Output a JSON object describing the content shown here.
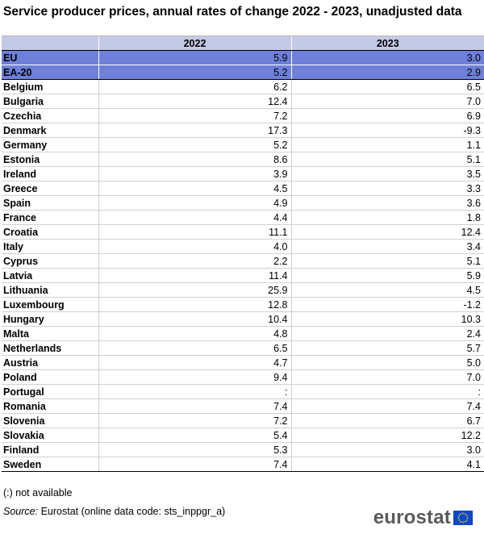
{
  "title": "Service producer prices, annual rates of change 2022 - 2023, unadjusted data",
  "table": {
    "headers": [
      "",
      "2022",
      "2023"
    ],
    "aggregates": [
      {
        "name": "EU",
        "v2022": "5.9",
        "v2023": "3.0"
      },
      {
        "name": "EA-20",
        "v2022": "5.2",
        "v2023": "2.9"
      }
    ],
    "rows": [
      {
        "name": "Belgium",
        "v2022": "6.2",
        "v2023": "6.5"
      },
      {
        "name": "Bulgaria",
        "v2022": "12.4",
        "v2023": "7.0"
      },
      {
        "name": "Czechia",
        "v2022": "7.2",
        "v2023": "6.9"
      },
      {
        "name": "Denmark",
        "v2022": "17.3",
        "v2023": "-9.3"
      },
      {
        "name": "Germany",
        "v2022": "5.2",
        "v2023": "1.1"
      },
      {
        "name": "Estonia",
        "v2022": "8.6",
        "v2023": "5.1"
      },
      {
        "name": "Ireland",
        "v2022": "3.9",
        "v2023": "3.5"
      },
      {
        "name": "Greece",
        "v2022": "4.5",
        "v2023": "3.3"
      },
      {
        "name": "Spain",
        "v2022": "4.9",
        "v2023": "3.6"
      },
      {
        "name": "France",
        "v2022": "4.4",
        "v2023": "1.8"
      },
      {
        "name": "Croatia",
        "v2022": "11.1",
        "v2023": "12.4"
      },
      {
        "name": "Italy",
        "v2022": "4.0",
        "v2023": "3.4"
      },
      {
        "name": "Cyprus",
        "v2022": "2.2",
        "v2023": "5.1"
      },
      {
        "name": "Latvia",
        "v2022": "11.4",
        "v2023": "5.9"
      },
      {
        "name": "Lithuania",
        "v2022": "25.9",
        "v2023": "4.5"
      },
      {
        "name": "Luxembourg",
        "v2022": "12.8",
        "v2023": "-1.2"
      },
      {
        "name": "Hungary",
        "v2022": "10.4",
        "v2023": "10.3"
      },
      {
        "name": "Malta",
        "v2022": "4.8",
        "v2023": "2.4"
      },
      {
        "name": "Netherlands",
        "v2022": "6.5",
        "v2023": "5.7"
      },
      {
        "name": "Austria",
        "v2022": "4.7",
        "v2023": "5.0"
      },
      {
        "name": "Poland",
        "v2022": "9.4",
        "v2023": "7.0"
      },
      {
        "name": "Portugal",
        "v2022": ":",
        "v2023": ":"
      },
      {
        "name": "Romania",
        "v2022": "7.4",
        "v2023": "7.4"
      },
      {
        "name": "Slovenia",
        "v2022": "7.2",
        "v2023": "6.7"
      },
      {
        "name": "Slovakia",
        "v2022": "5.4",
        "v2023": "12.2"
      },
      {
        "name": "Finland",
        "v2022": "5.3",
        "v2023": "3.0"
      },
      {
        "name": "Sweden",
        "v2022": "7.4",
        "v2023": "4.1"
      }
    ]
  },
  "footnote": "(:) not available",
  "source": {
    "label": "Source:",
    "text": "Eurostat (online data code: sts_inppgr_a)"
  },
  "logo": {
    "text": "eurostat",
    "flag_color": "#0e47cb",
    "star_color": "#ffdd00"
  },
  "colors": {
    "header_bg": "#c4c9e6",
    "aggregate_bg": "#6e80d9"
  }
}
